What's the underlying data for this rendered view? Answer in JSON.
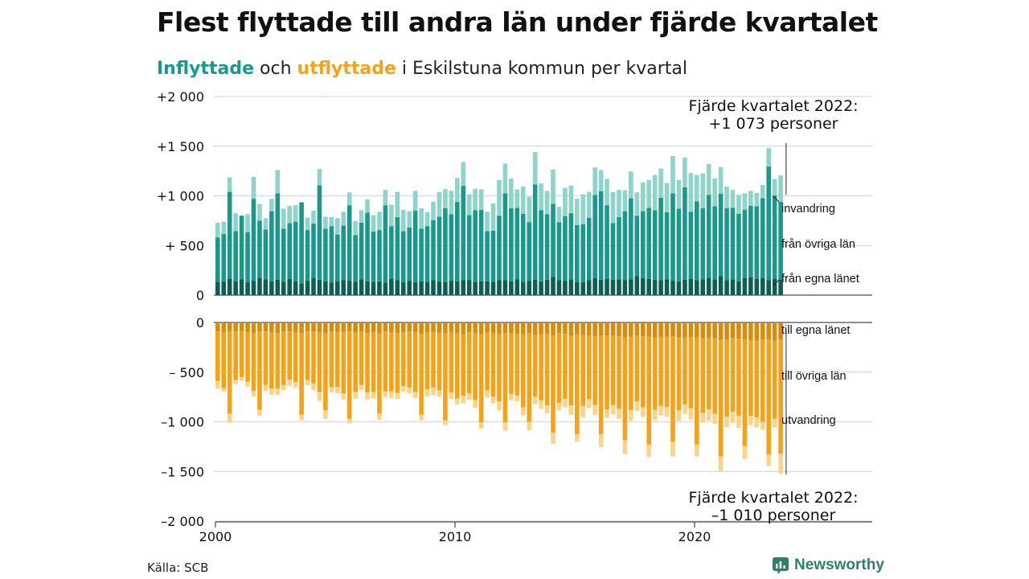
{
  "header": {
    "title": "Flest flyttade till andra län under fjärde kvartalet",
    "subtitle_in": "Inflyttade",
    "subtitle_mid": " och ",
    "subtitle_out": "utflyttade",
    "subtitle_rest": " i Eskilstuna kommun per kvartal"
  },
  "footer": {
    "source": "Källa: SCB",
    "brand": "Newsworthy"
  },
  "colors": {
    "in_egna": "#0d5e54",
    "in_ovriga": "#1a998a",
    "in_invandring": "#8fd4cb",
    "out_egna": "#d98c0a",
    "out_ovriga": "#f5a21b",
    "out_utvandring": "#fbd48a",
    "grid": "#d9d9d9",
    "brand": "#2f7f6f"
  },
  "chart_data": [
    {
      "type": "bar",
      "stacked": true,
      "panel": "inflyttade",
      "ylim": [
        0,
        2000
      ],
      "y_ticks": [
        0,
        500,
        1000,
        1500,
        2000
      ],
      "y_tick_labels": [
        "0",
        "+ 500",
        "+1 000",
        "+1 500",
        "+2 000"
      ],
      "series": [
        {
          "name": "från egna länet",
          "values": [
            135,
            140,
            165,
            140,
            160,
            130,
            145,
            175,
            160,
            140,
            155,
            135,
            165,
            140,
            120,
            145,
            170,
            155,
            140,
            125,
            140,
            150,
            145,
            135,
            160,
            140,
            135,
            140,
            125,
            165,
            150,
            130,
            145,
            130,
            140,
            135,
            150,
            140,
            135,
            145,
            140,
            150,
            150,
            135,
            140,
            140,
            135,
            150,
            150,
            140,
            160,
            135,
            145,
            155,
            140,
            155,
            185,
            150,
            145,
            160,
            135,
            130,
            150,
            170,
            155,
            165,
            155,
            160,
            150,
            160,
            190,
            170,
            165,
            155,
            150,
            160,
            145,
            140,
            155,
            165,
            150,
            160,
            175,
            160,
            190,
            150,
            160,
            140,
            170,
            180,
            165,
            170,
            150,
            165,
            160
          ]
        },
        {
          "name": "från övriga län",
          "values": [
            445,
            475,
            875,
            505,
            640,
            505,
            825,
            575,
            500,
            705,
            870,
            535,
            560,
            600,
            815,
            510,
            550,
            950,
            530,
            570,
            470,
            550,
            760,
            470,
            570,
            690,
            505,
            515,
            780,
            530,
            635,
            515,
            535,
            720,
            530,
            560,
            605,
            650,
            740,
            670,
            800,
            950,
            655,
            720,
            720,
            505,
            515,
            650,
            875,
            735,
            720,
            685,
            590,
            960,
            715,
            660,
            735,
            585,
            650,
            665,
            570,
            585,
            630,
            840,
            890,
            740,
            570,
            625,
            695,
            815,
            610,
            675,
            715,
            700,
            830,
            675,
            880,
            730,
            930,
            675,
            795,
            715,
            835,
            735,
            830,
            725,
            720,
            680,
            690,
            720,
            730,
            805,
            1145,
            840,
            780
          ]
        },
        {
          "name": "invandring",
          "values": [
            150,
            125,
            145,
            180,
            0,
            180,
            220,
            165,
            115,
            125,
            235,
            200,
            175,
            165,
            0,
            125,
            130,
            165,
            120,
            90,
            165,
            140,
            130,
            140,
            125,
            135,
            165,
            185,
            155,
            215,
            255,
            215,
            165,
            200,
            205,
            140,
            185,
            250,
            195,
            235,
            240,
            240,
            210,
            215,
            205,
            195,
            275,
            360,
            300,
            300,
            185,
            275,
            255,
            325,
            270,
            235,
            345,
            155,
            285,
            280,
            265,
            300,
            260,
            275,
            215,
            265,
            315,
            275,
            210,
            270,
            235,
            290,
            280,
            355,
            295,
            295,
            375,
            290,
            300,
            390,
            265,
            350,
            310,
            280,
            270,
            220,
            180,
            190,
            165,
            150,
            135,
            135,
            185,
            165,
            265
          ]
        }
      ]
    },
    {
      "type": "bar",
      "stacked": true,
      "panel": "utflyttade",
      "ylim": [
        -2000,
        0
      ],
      "y_ticks": [
        0,
        -500,
        -1000,
        -1500,
        -2000
      ],
      "y_tick_labels": [
        "0",
        "– 500",
        "–1 000",
        "–1 500",
        "–2 000"
      ],
      "series": [
        {
          "name": "till egna länet",
          "values": [
            -90,
            -100,
            -95,
            -90,
            -85,
            -100,
            -110,
            -95,
            -90,
            -100,
            -105,
            -95,
            -90,
            -100,
            -110,
            -90,
            -95,
            -100,
            -110,
            -95,
            -100,
            -95,
            -90,
            -100,
            -95,
            -105,
            -100,
            -110,
            -95,
            -100,
            -105,
            -100,
            -95,
            -100,
            -115,
            -100,
            -100,
            -105,
            -110,
            -100,
            -110,
            -120,
            -100,
            -105,
            -120,
            -105,
            -110,
            -120,
            -105,
            -110,
            -115,
            -120,
            -110,
            -125,
            -120,
            -120,
            -130,
            -110,
            -115,
            -130,
            -120,
            -125,
            -130,
            -140,
            -135,
            -130,
            -130,
            -140,
            -150,
            -145,
            -135,
            -140,
            -145,
            -150,
            -150,
            -145,
            -140,
            -150,
            -155,
            -145,
            -150,
            -160,
            -155,
            -160,
            -175,
            -170,
            -160,
            -165,
            -170,
            -180,
            -185,
            -175,
            -170,
            -185,
            -170
          ]
        },
        {
          "name": "till övriga län",
          "values": [
            -500,
            -560,
            -825,
            -490,
            -465,
            -495,
            -580,
            -785,
            -540,
            -565,
            -560,
            -535,
            -485,
            -500,
            -820,
            -490,
            -520,
            -600,
            -775,
            -555,
            -550,
            -620,
            -880,
            -600,
            -535,
            -600,
            -600,
            -805,
            -600,
            -595,
            -605,
            -540,
            -560,
            -600,
            -815,
            -575,
            -555,
            -580,
            -875,
            -605,
            -655,
            -620,
            -615,
            -675,
            -885,
            -580,
            -635,
            -675,
            -900,
            -610,
            -620,
            -735,
            -890,
            -620,
            -665,
            -715,
            -980,
            -700,
            -655,
            -705,
            -1005,
            -715,
            -645,
            -690,
            -990,
            -745,
            -700,
            -730,
            -1035,
            -735,
            -660,
            -715,
            -1085,
            -730,
            -690,
            -705,
            -1060,
            -735,
            -670,
            -720,
            -1080,
            -750,
            -720,
            -760,
            -1175,
            -780,
            -740,
            -775,
            -1075,
            -760,
            -770,
            -825,
            -1160,
            -785,
            -1150
          ]
        },
        {
          "name": "utvandring",
          "values": [
            -75,
            -35,
            -90,
            -40,
            -35,
            -50,
            -55,
            -60,
            -60,
            -65,
            -65,
            -50,
            -65,
            -55,
            -55,
            -50,
            -65,
            -90,
            -85,
            -55,
            -65,
            -60,
            -45,
            -70,
            -50,
            -70,
            -65,
            -65,
            -60,
            -65,
            -60,
            -55,
            -60,
            -60,
            -55,
            -70,
            -80,
            -60,
            -50,
            -65,
            -60,
            -75,
            -65,
            -80,
            -65,
            -70,
            -70,
            -90,
            -85,
            -65,
            -60,
            -80,
            -85,
            -75,
            -85,
            -80,
            -110,
            -75,
            -85,
            -95,
            -75,
            -115,
            -85,
            -100,
            -130,
            -85,
            -95,
            -100,
            -140,
            -110,
            -95,
            -95,
            -125,
            -105,
            -95,
            -100,
            -150,
            -105,
            -95,
            -110,
            -120,
            -100,
            -115,
            -100,
            -150,
            -105,
            -110,
            -120,
            -130,
            -95,
            -100,
            -80,
            -115,
            -85,
            -200
          ]
        }
      ]
    }
  ],
  "x_axis": {
    "start_year": 2000,
    "end_year": 2025,
    "tick_labels": [
      "2000",
      "2010",
      "2020"
    ]
  },
  "annotations": {
    "in_total_line1": "Fjärde kvartalet 2022:",
    "in_total_line2": "+1 073 personer",
    "out_total_line1": "Fjärde kvartalet 2022:",
    "out_total_line2": "–1 010 personer",
    "label_invandring": "invandring",
    "label_fran_ovriga": "från övriga län",
    "label_fran_egna": "från egna länet",
    "label_till_egna": "till egna länet",
    "label_till_ovriga": "till övriga län",
    "label_utvandring": "utvandring"
  }
}
